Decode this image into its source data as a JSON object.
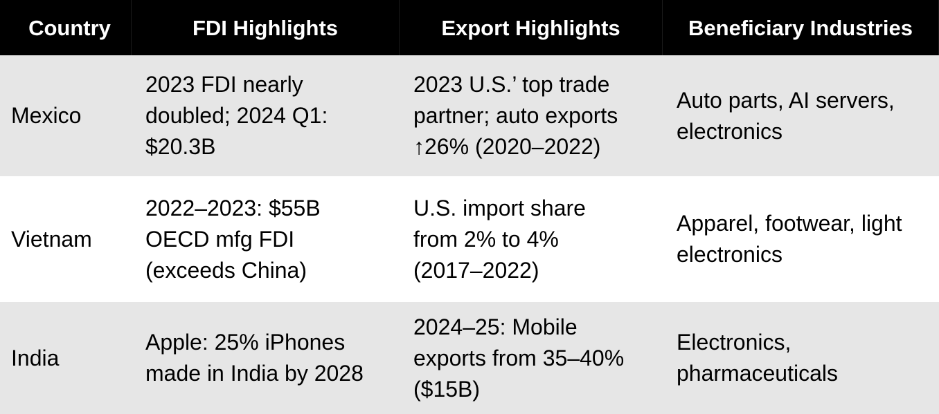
{
  "table": {
    "headers": [
      "Country",
      "FDI Highlights",
      "Export Highlights",
      "Beneficiary Industries"
    ],
    "rows": [
      {
        "country": "Mexico",
        "fdi": "2023 FDI nearly\ndoubled; 2024 Q1:\n$20.3B",
        "exports": "2023 U.S.’ top trade\npartner; auto exports\n↑26% (2020–2022)",
        "industries": "Auto parts, AI servers,\nelectronics"
      },
      {
        "country": "Vietnam",
        "fdi": "2022–2023: $55B\nOECD mfg FDI\n(exceeds China)",
        "exports": "U.S. import share\nfrom 2% to 4%\n(2017–2022)",
        "industries": "Apparel, footwear, light\nelectronics"
      },
      {
        "country": "India",
        "fdi": "Apple: 25% iPhones\nmade in India by 2028",
        "exports": "2024–25: Mobile\nexports from 35–40%\n($15B)",
        "industries": "Electronics,\npharmaceuticals"
      }
    ]
  }
}
